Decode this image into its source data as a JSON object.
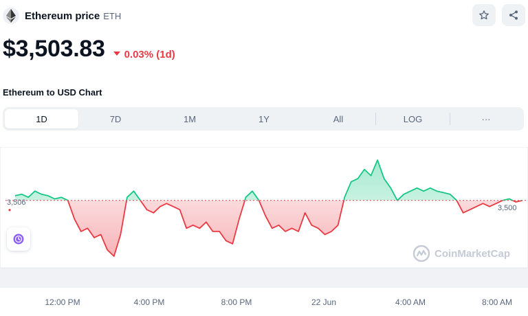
{
  "header": {
    "coin_name": "Ethereum price",
    "symbol": "ETH",
    "logo_icon": "ethereum-diamond-icon",
    "star_icon": "star-outline-icon",
    "share_icon": "share-icon"
  },
  "price": {
    "value": "$3,503.83",
    "change": "0.03% (1d)",
    "direction": "down",
    "down_color": "#ea3943",
    "up_color": "#16c784"
  },
  "chart_heading": "Ethereum to USD Chart",
  "tabs": [
    {
      "label": "1D",
      "active": true
    },
    {
      "label": "7D",
      "active": false
    },
    {
      "label": "1M",
      "active": false
    },
    {
      "label": "1Y",
      "active": false
    },
    {
      "label": "All",
      "active": false
    },
    {
      "label": "LOG",
      "active": false
    },
    {
      "label": "···",
      "active": false
    }
  ],
  "chart": {
    "reference_label_left": "3,506",
    "reference_label_right": "3,500",
    "watermark": "CoinMarketCap",
    "history_icon": "history-clock-icon"
  },
  "chart_data": {
    "type": "line",
    "x_labels": [
      "12:00 PM",
      "4:00 PM",
      "8:00 PM",
      "22 Jun",
      "4:00 AM",
      "8:00 AM"
    ],
    "baseline": 3506,
    "series": [
      {
        "values": [
          3507.5,
          3508,
          3507,
          3509,
          3508,
          3507.5,
          3506.5,
          3507,
          3506,
          3500,
          3496,
          3497,
          3494,
          3495,
          3490,
          3488,
          3495,
          3507,
          3509,
          3506,
          3503,
          3502,
          3504,
          3505,
          3504,
          3503,
          3497,
          3498,
          3497,
          3499,
          3496,
          3496,
          3493,
          3492,
          3500,
          3507,
          3509,
          3506,
          3501,
          3497,
          3498,
          3496,
          3497,
          3496,
          3502,
          3498,
          3497,
          3495,
          3496,
          3498,
          3507,
          3512,
          3513,
          3516,
          3514,
          3519,
          3513,
          3510,
          3506,
          3508,
          3509,
          3510,
          3509,
          3510,
          3509,
          3508.5,
          3508,
          3506,
          3502,
          3503,
          3504,
          3505,
          3504,
          3505,
          3506,
          3506.5,
          3505.5,
          3506
        ]
      }
    ],
    "colors": {
      "above": "#16c784",
      "below": "#ea3943",
      "baseline": "#ea3943"
    }
  }
}
